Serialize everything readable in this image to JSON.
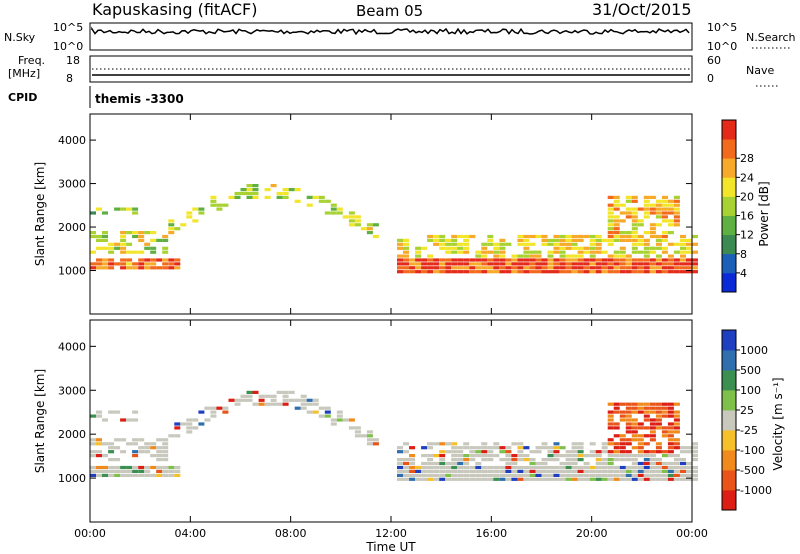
{
  "header": {
    "station": "Kapuskasing (fitACF)",
    "beam": "Beam 05",
    "date": "31/Oct/2015"
  },
  "noise_panel": {
    "left_label": "N.Sky",
    "right_label": "N.Search",
    "left_ticks": [
      "10^5",
      "10^0"
    ],
    "right_ticks": [
      "10^5",
      "10^0"
    ]
  },
  "freq_panel": {
    "left_label_line1": "Freq.",
    "left_label_line2": "[MHz]",
    "right_label": "Nave",
    "left_ticks": [
      "18",
      "8"
    ],
    "right_ticks": [
      "60",
      "0"
    ]
  },
  "cpid": {
    "label": "CPID",
    "value": "themis -3300"
  },
  "chart_data": [
    {
      "type": "heatmap",
      "title": "Power",
      "ylabel": "Slant Range [km]",
      "xlabel": "",
      "ylim": [
        0,
        4600
      ],
      "yticks": [
        "1000",
        "2000",
        "3000",
        "4000"
      ],
      "colorbar": {
        "label": "Power [dB]",
        "ticks": [
          "4",
          "8",
          "12",
          "16",
          "20",
          "24",
          "28"
        ],
        "colors": [
          "#0a2ad8",
          "#1b5fb8",
          "#3a8a52",
          "#5fb042",
          "#a8d232",
          "#f3e62a",
          "#f7a92a",
          "#f26a1c",
          "#e42a18"
        ]
      }
    },
    {
      "type": "heatmap",
      "title": "Velocity",
      "ylabel": "Slant Range [km]",
      "xlabel": "Time UT",
      "ylim": [
        0,
        4600
      ],
      "yticks": [
        "1000",
        "2000",
        "3000",
        "4000"
      ],
      "xticks": [
        "00:00",
        "04:00",
        "08:00",
        "12:00",
        "16:00",
        "20:00",
        "00:00"
      ],
      "colorbar": {
        "label": "Velocity [m s⁻¹]",
        "ticks": [
          "1000",
          "500",
          "100",
          "25",
          "-25",
          "-100",
          "-500",
          "-1000"
        ],
        "colors": [
          "#1d3fc0",
          "#2f6fae",
          "#3b8f50",
          "#7fc04a",
          "#c8c8bd",
          "#f5c02a",
          "#f08a1c",
          "#e8541a",
          "#dc1e14"
        ]
      }
    }
  ]
}
